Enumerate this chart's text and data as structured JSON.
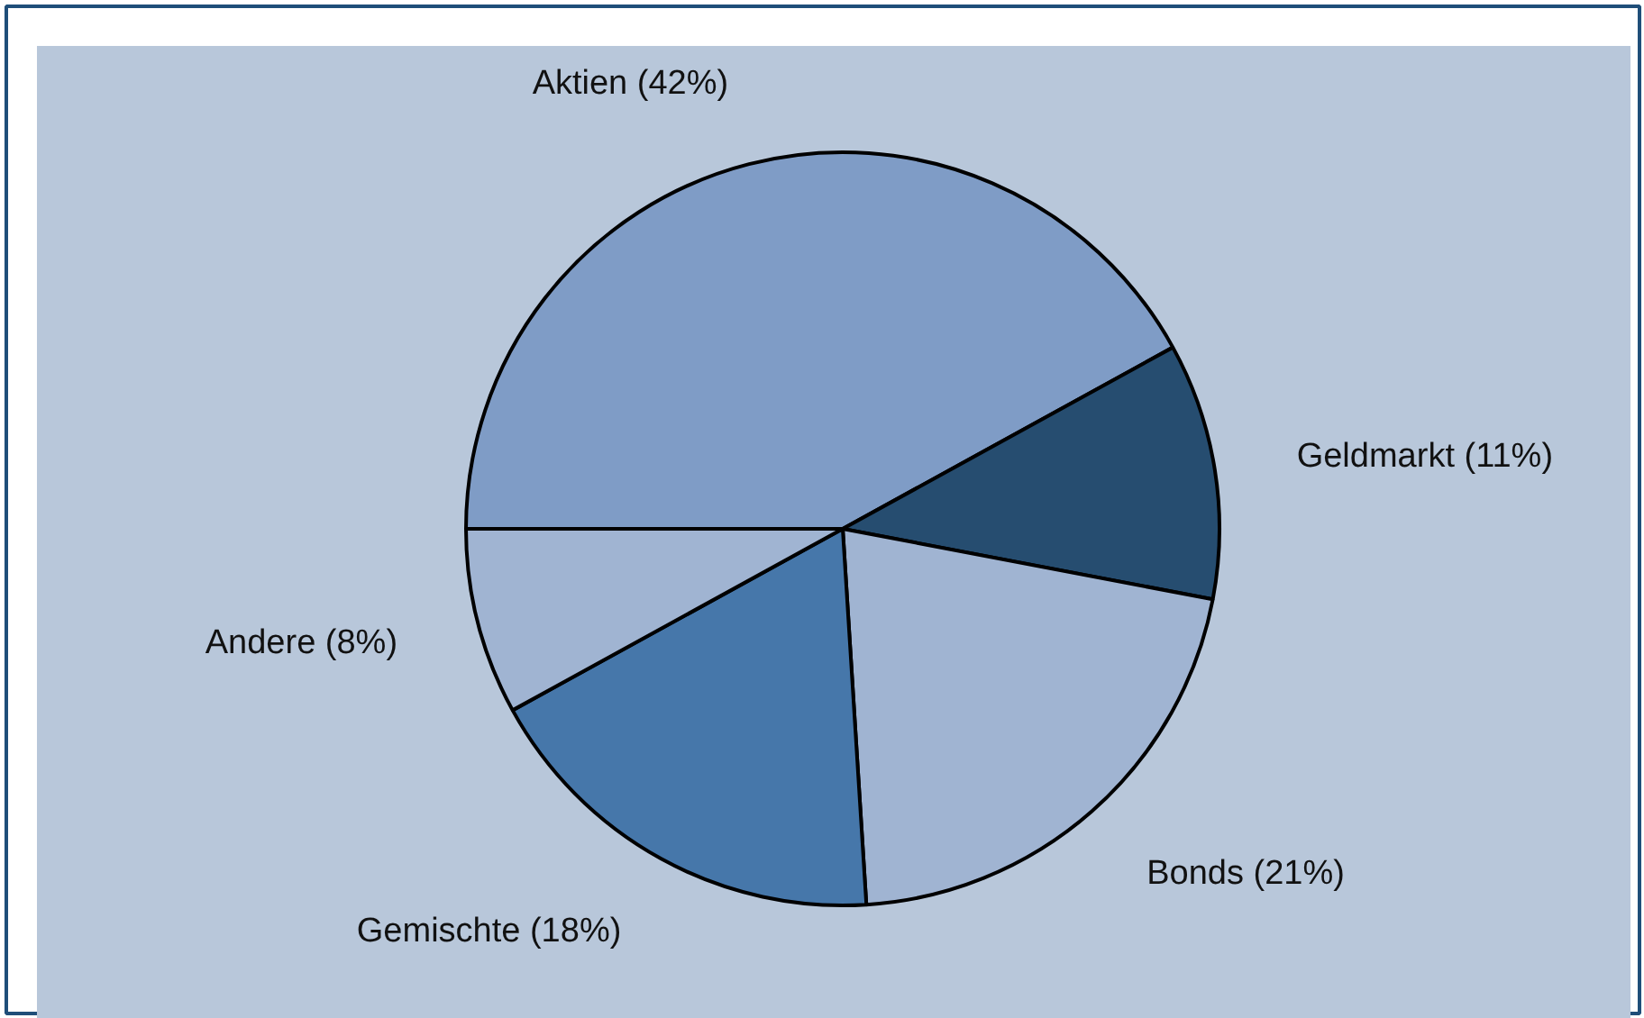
{
  "chart_data": {
    "type": "pie",
    "categories": [
      "Aktien (42%)",
      "Geldmarkt (11%)",
      "Bonds (21%)",
      "Gemischte (18%)",
      "Andere (8%)"
    ],
    "values": [
      42,
      11,
      21,
      18,
      8
    ],
    "colors": [
      "#7f9cc6",
      "#264d70",
      "#a0b4d2",
      "#4677aa",
      "#a0b4d2"
    ]
  }
}
